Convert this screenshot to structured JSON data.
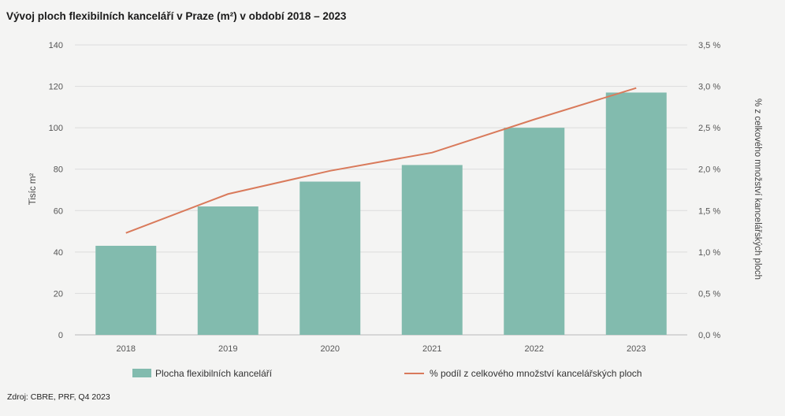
{
  "title": "Vývoj ploch flexibilních kanceláří v Praze (m²) v období 2018 – 2023",
  "source": "Zdroj: CBRE, PRF, Q4 2023",
  "chart_data": {
    "type": "bar",
    "categories": [
      "2018",
      "2019",
      "2020",
      "2021",
      "2022",
      "2023"
    ],
    "series": [
      {
        "name": "Plocha flexibilních kanceláří",
        "type": "bar",
        "axis": "left",
        "color": "#82bbae",
        "values": [
          43,
          62,
          74,
          82,
          100,
          117
        ]
      },
      {
        "name": "% podíl z celkového množství kancelářských ploch",
        "type": "line",
        "axis": "right",
        "color": "#d97a5b",
        "values": [
          1.23,
          1.7,
          1.98,
          2.2,
          2.6,
          2.98
        ]
      }
    ],
    "ylabel": "Tisíc m²",
    "ylim": [
      0,
      140
    ],
    "yticks": [
      "0",
      "20",
      "40",
      "60",
      "80",
      "100",
      "120",
      "140"
    ],
    "y2label": "% z celkového množství kancelářských ploch",
    "y2lim": [
      0,
      3.5
    ],
    "y2ticks": [
      "0,0 %",
      "0,5 %",
      "1,0 %",
      "1,5 %",
      "2,0 %",
      "2,5 %",
      "3,0 %",
      "3,5 %"
    ],
    "grid": true,
    "legend": "bottom"
  }
}
